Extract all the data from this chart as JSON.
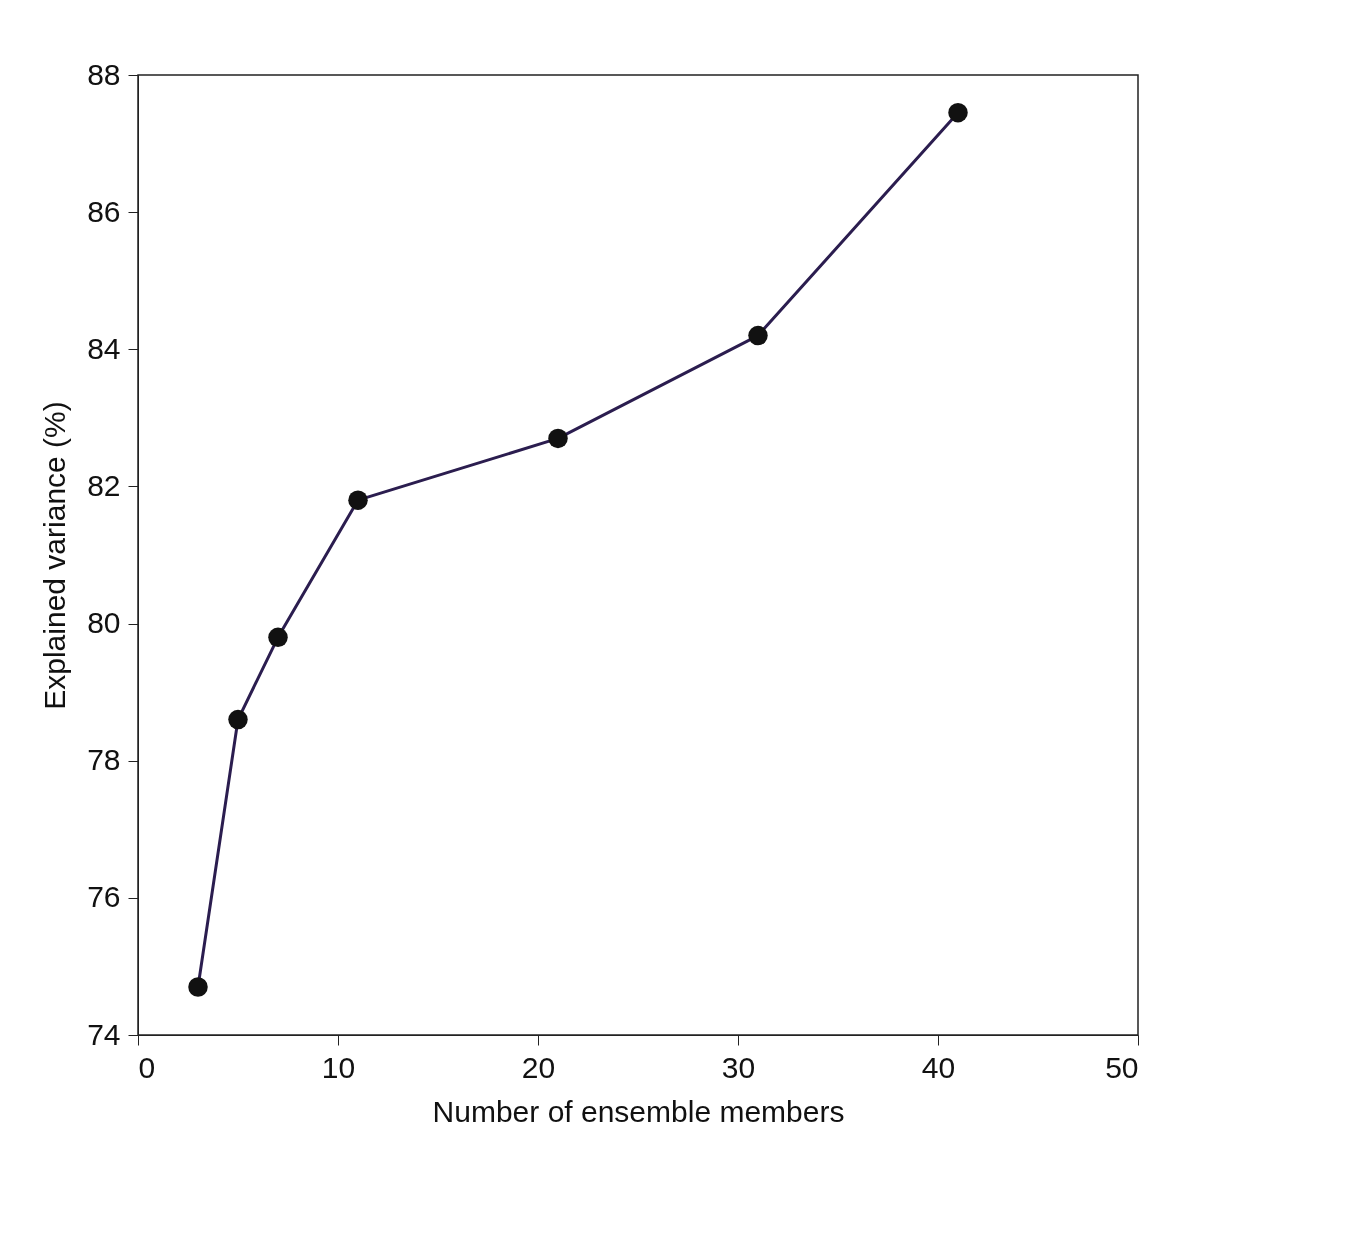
{
  "chart_data": {
    "type": "line",
    "xlabel": "Number of ensemble members",
    "ylabel": "Explained variance (%)",
    "x": [
      3,
      5,
      7,
      11,
      21,
      31,
      41
    ],
    "series": [
      {
        "color": "#2b1d4f",
        "values": [
          74.7,
          78.6,
          79.8,
          81.8,
          82.7,
          84.2,
          87.45
        ]
      }
    ],
    "xlim": [
      0,
      50
    ],
    "xticks": [
      0,
      10,
      20,
      30,
      40,
      50
    ],
    "ylim": [
      74,
      88
    ],
    "yticks": [
      74,
      76,
      78,
      80,
      82,
      84,
      86,
      88
    ],
    "grid": false,
    "marker": "circle",
    "line_style": "solid"
  }
}
